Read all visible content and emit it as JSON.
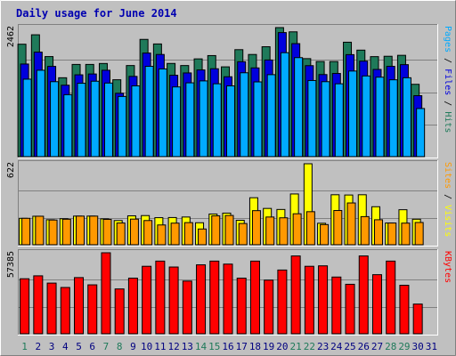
{
  "chart_data": [
    {
      "type": "bar",
      "title": "Daily usage for June 2014",
      "max_label": "2462",
      "categories": [
        "1",
        "2",
        "3",
        "4",
        "5",
        "6",
        "7",
        "8",
        "9",
        "10",
        "11",
        "12",
        "13",
        "14",
        "15",
        "16",
        "17",
        "18",
        "19",
        "20",
        "21",
        "22",
        "23",
        "24",
        "25",
        "26",
        "27",
        "28",
        "29",
        "30",
        "31"
      ],
      "weekend_days": [
        "1",
        "7",
        "8",
        "14",
        "15",
        "21",
        "22",
        "28",
        "29"
      ],
      "series": [
        {
          "name": "Hits",
          "color": "#1f7a5a",
          "values": [
            2145,
            2325,
            1909,
            1505,
            1759,
            1759,
            1777,
            1467,
            1738,
            2237,
            2150,
            1778,
            1738,
            1865,
            1928,
            1713,
            2041,
            1949,
            2097,
            2462,
            2381,
            1870,
            1815,
            1814,
            2183,
            2032,
            1908,
            1915,
            1933,
            1380,
            0
          ]
        },
        {
          "name": "Files",
          "color": "#0000dd",
          "values": [
            1767,
            1994,
            1722,
            1363,
            1561,
            1577,
            1648,
            1209,
            1531,
            1976,
            1949,
            1553,
            1597,
            1654,
            1677,
            1524,
            1811,
            1693,
            1844,
            2367,
            2156,
            1736,
            1566,
            1587,
            1946,
            1822,
            1664,
            1723,
            1755,
            1163,
            0
          ]
        },
        {
          "name": "Pages",
          "color": "#00aaff",
          "values": [
            1478,
            1648,
            1430,
            1182,
            1400,
            1439,
            1404,
            1148,
            1350,
            1723,
            1673,
            1330,
            1408,
            1445,
            1390,
            1350,
            1600,
            1426,
            1564,
            1983,
            1889,
            1452,
            1430,
            1390,
            1633,
            1539,
            1516,
            1466,
            1505,
            918,
            0
          ]
        }
      ]
    },
    {
      "type": "bar",
      "max_label": "622",
      "categories": [
        "1",
        "2",
        "3",
        "4",
        "5",
        "6",
        "7",
        "8",
        "9",
        "10",
        "11",
        "12",
        "13",
        "14",
        "15",
        "16",
        "17",
        "18",
        "19",
        "20",
        "21",
        "22",
        "23",
        "24",
        "25",
        "26",
        "27",
        "28",
        "29",
        "30",
        "31"
      ],
      "series": [
        {
          "name": "Visits",
          "color": "#ffff00",
          "values": [
            203,
            219,
            192,
            200,
            220,
            220,
            199,
            186,
            222,
            224,
            208,
            209,
            213,
            169,
            236,
            243,
            188,
            361,
            279,
            271,
            390,
            622,
            165,
            384,
            382,
            384,
            292,
            167,
            269,
            196,
            0
          ]
        },
        {
          "name": "Sites",
          "color": "#ff9900",
          "values": [
            203,
            219,
            190,
            196,
            220,
            220,
            195,
            167,
            197,
            186,
            152,
            166,
            170,
            121,
            222,
            225,
            163,
            262,
            213,
            207,
            238,
            254,
            155,
            263,
            321,
            216,
            192,
            167,
            166,
            171,
            0
          ]
        }
      ]
    },
    {
      "type": "bar",
      "max_label": "57385",
      "categories": [
        "1",
        "2",
        "3",
        "4",
        "5",
        "6",
        "7",
        "8",
        "9",
        "10",
        "11",
        "12",
        "13",
        "14",
        "15",
        "16",
        "17",
        "18",
        "19",
        "20",
        "21",
        "22",
        "23",
        "24",
        "25",
        "26",
        "27",
        "28",
        "29",
        "30",
        "31"
      ],
      "series": [
        {
          "name": "KBytes",
          "color": "#ff0000",
          "values": [
            38970,
            41045,
            35890,
            32790,
            39800,
            34650,
            57385,
            31750,
            39400,
            47800,
            51480,
            47280,
            37310,
            48840,
            51480,
            49350,
            39400,
            51480,
            37990,
            45150,
            55130,
            47800,
            48120,
            40180,
            35050,
            55130,
            41860,
            51480,
            34360,
            21030,
            0
          ]
        }
      ]
    }
  ]
}
